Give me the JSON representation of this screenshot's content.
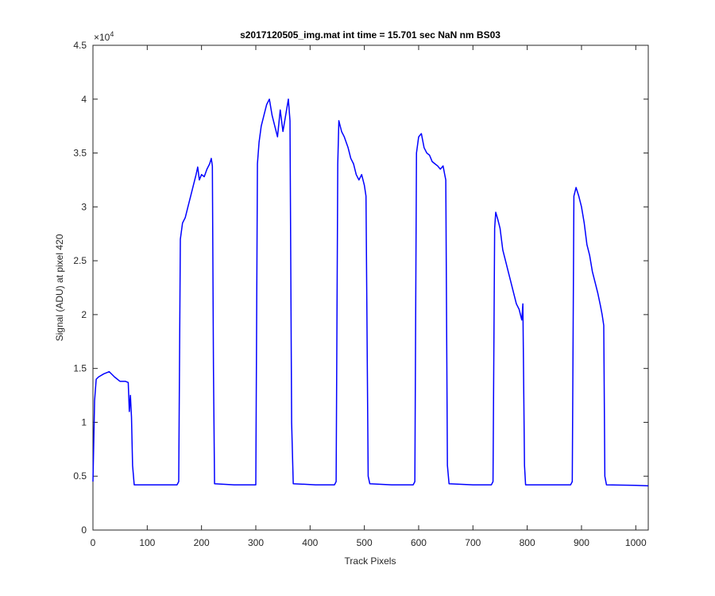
{
  "chart_data": {
    "type": "line",
    "title": "s2017120505_img.mat int time = 15.701 sec  NaN nm BS03",
    "x_label": "Track Pixels",
    "y_label": "Signal (ADU) at pixel 420",
    "y_scale_label": {
      "base": "×10",
      "exponent": "4"
    },
    "color": "#0000ff",
    "xlim": [
      0,
      1023
    ],
    "xticks": [
      0,
      100,
      200,
      300,
      400,
      500,
      600,
      700,
      800,
      900,
      1000
    ],
    "ylim": [
      0,
      4.5
    ],
    "yticks": [
      0,
      0.5,
      1,
      1.5,
      2,
      2.5,
      3,
      3.5,
      4,
      4.5
    ],
    "x": [
      0,
      3,
      6,
      10,
      20,
      30,
      40,
      50,
      60,
      65,
      67,
      69,
      71,
      73,
      76,
      120,
      155,
      158,
      161,
      165,
      170,
      175,
      180,
      185,
      190,
      193,
      196,
      200,
      205,
      210,
      215,
      218,
      220,
      222,
      224,
      260,
      300,
      303,
      306,
      310,
      315,
      320,
      325,
      330,
      335,
      340,
      345,
      350,
      355,
      360,
      363,
      366,
      369,
      410,
      445,
      448,
      451,
      453,
      458,
      463,
      470,
      475,
      480,
      485,
      490,
      495,
      500,
      503,
      507,
      510,
      550,
      590,
      593,
      596,
      600,
      605,
      610,
      615,
      620,
      625,
      630,
      635,
      640,
      645,
      648,
      650,
      653,
      656,
      700,
      734,
      737,
      740,
      742,
      746,
      750,
      755,
      760,
      765,
      770,
      775,
      780,
      785,
      790,
      792,
      795,
      797,
      840,
      880,
      883,
      886,
      890,
      895,
      900,
      905,
      910,
      915,
      920,
      925,
      930,
      935,
      938,
      941,
      943,
      946,
      1000,
      1023
    ],
    "values": [
      0.45,
      1.2,
      1.4,
      1.42,
      1.45,
      1.47,
      1.42,
      1.38,
      1.38,
      1.37,
      1.1,
      1.25,
      1.05,
      0.6,
      0.42,
      0.42,
      0.42,
      0.45,
      2.7,
      2.85,
      2.9,
      3.0,
      3.1,
      3.2,
      3.3,
      3.37,
      3.25,
      3.3,
      3.28,
      3.35,
      3.4,
      3.45,
      3.38,
      1.5,
      0.43,
      0.42,
      0.42,
      3.4,
      3.6,
      3.75,
      3.85,
      3.95,
      4.0,
      3.85,
      3.75,
      3.65,
      3.9,
      3.7,
      3.85,
      4.0,
      3.8,
      1.0,
      0.43,
      0.42,
      0.42,
      0.45,
      3.4,
      3.8,
      3.7,
      3.65,
      3.55,
      3.45,
      3.4,
      3.3,
      3.25,
      3.3,
      3.2,
      3.1,
      0.5,
      0.43,
      0.42,
      0.42,
      0.45,
      3.5,
      3.65,
      3.68,
      3.55,
      3.5,
      3.48,
      3.42,
      3.4,
      3.38,
      3.35,
      3.38,
      3.3,
      3.25,
      0.6,
      0.43,
      0.42,
      0.42,
      0.45,
      2.8,
      2.95,
      2.88,
      2.8,
      2.6,
      2.5,
      2.4,
      2.3,
      2.2,
      2.1,
      2.05,
      1.95,
      2.1,
      0.6,
      0.42,
      0.42,
      0.42,
      0.45,
      3.1,
      3.18,
      3.1,
      3.0,
      2.85,
      2.65,
      2.55,
      2.4,
      2.3,
      2.2,
      2.08,
      2.0,
      1.9,
      0.5,
      0.42,
      0.415,
      0.41
    ]
  }
}
